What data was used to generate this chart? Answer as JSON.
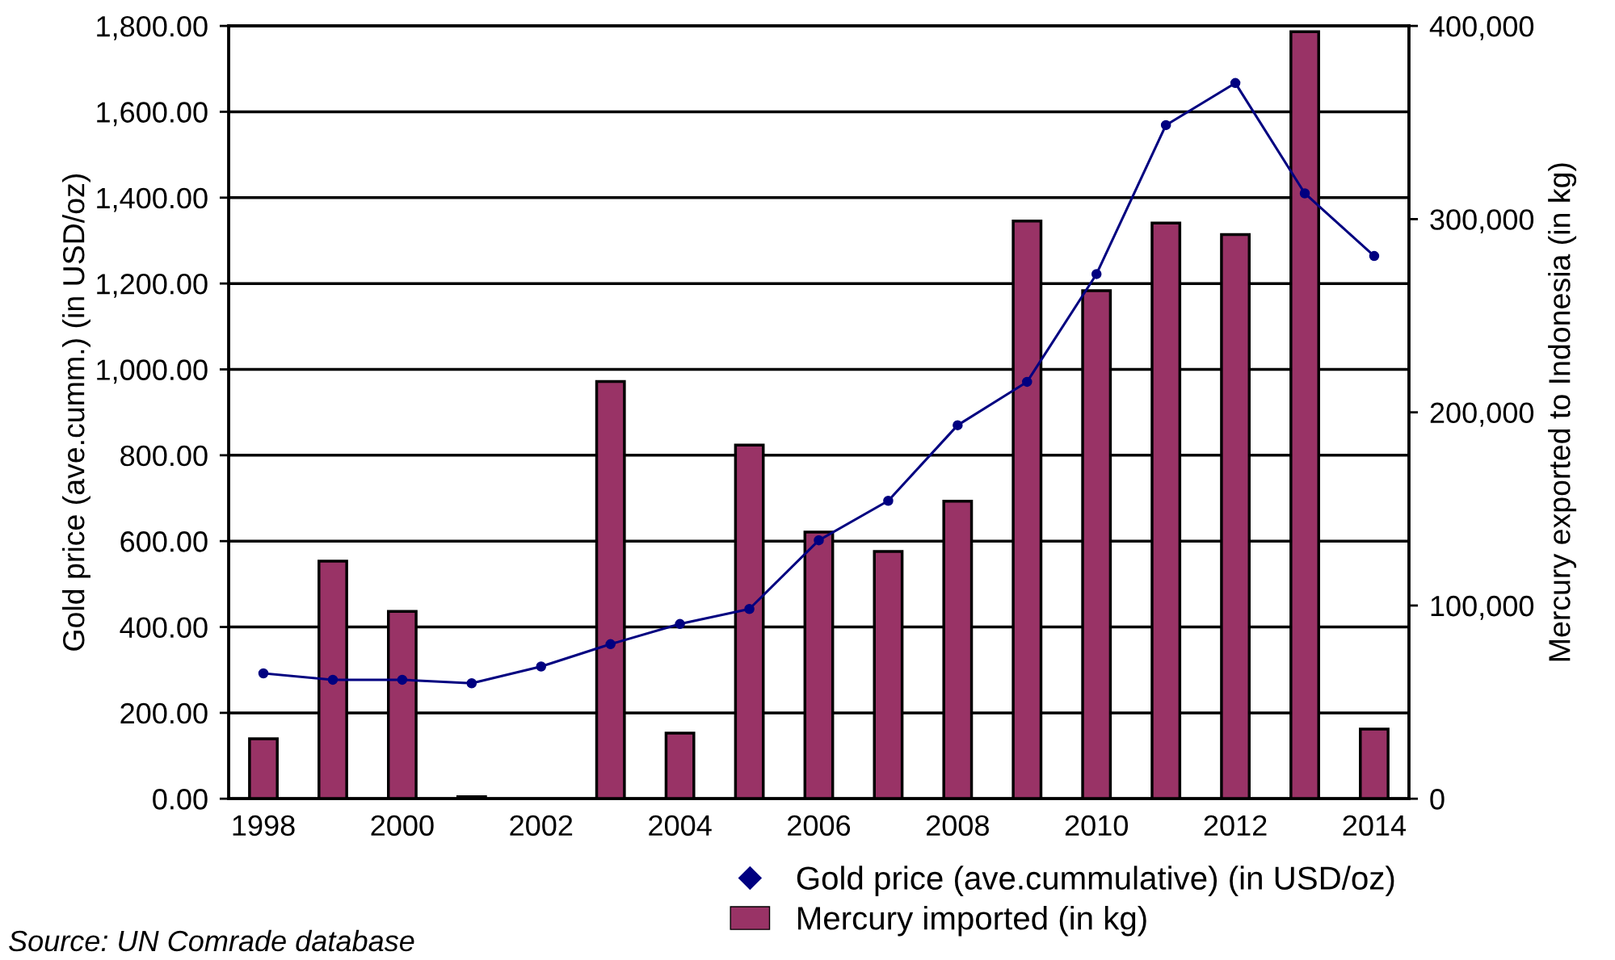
{
  "chart_data": {
    "type": "bar",
    "ylabel": "Gold price (ave.cumm.) (in USD/oz)",
    "y2label": "Mercury exported to Indonesia (in kg)",
    "categories": [
      "1998",
      null,
      "2000",
      null,
      "2002",
      null,
      "2004",
      null,
      "2006",
      null,
      "2008",
      null,
      "2010",
      null,
      "2012",
      null,
      "2014"
    ],
    "series": [
      {
        "name": "Gold price (ave.cummulative) (in USD/oz)",
        "type": "line",
        "color": "#000080",
        "marker": "circle",
        "axis": "y",
        "values": [
          292,
          277,
          277,
          269,
          308,
          360,
          407,
          442,
          602,
          694,
          870,
          971,
          1222,
          1569,
          1667,
          1410,
          1264
        ]
      },
      {
        "name": "Mercury imported (in kg)",
        "color": "#993366",
        "axis": "y2",
        "values": [
          31000,
          123000,
          97000,
          1000,
          null,
          216000,
          34000,
          183000,
          138000,
          128000,
          154000,
          299000,
          263000,
          298000,
          292000,
          397000,
          36000
        ]
      }
    ],
    "ylim": [
      0,
      1800
    ],
    "yticks": [
      {
        "value": 0,
        "label": "0.00"
      },
      {
        "value": 200,
        "label": "200.00"
      },
      {
        "value": 400,
        "label": "400.00"
      },
      {
        "value": 600,
        "label": "600.00"
      },
      {
        "value": 800,
        "label": "800.00"
      },
      {
        "value": 1000,
        "label": "1,000.00"
      },
      {
        "value": 1200,
        "label": "1,200.00"
      },
      {
        "value": 1400,
        "label": "1,400.00"
      },
      {
        "value": 1600,
        "label": "1,600.00"
      },
      {
        "value": 1800,
        "label": "1,800.00"
      }
    ],
    "y2lim": [
      0,
      400000
    ],
    "y2ticks": [
      0,
      {
        "value": 100000,
        "label": "100,000"
      },
      {
        "value": 200000,
        "label": "200,000"
      },
      {
        "value": 300000,
        "label": "300,000"
      },
      {
        "value": 400000,
        "label": "400,000"
      }
    ],
    "grid": "y",
    "legend": "bottom right",
    "annotations": [
      "Source: UN Comrade database"
    ]
  }
}
